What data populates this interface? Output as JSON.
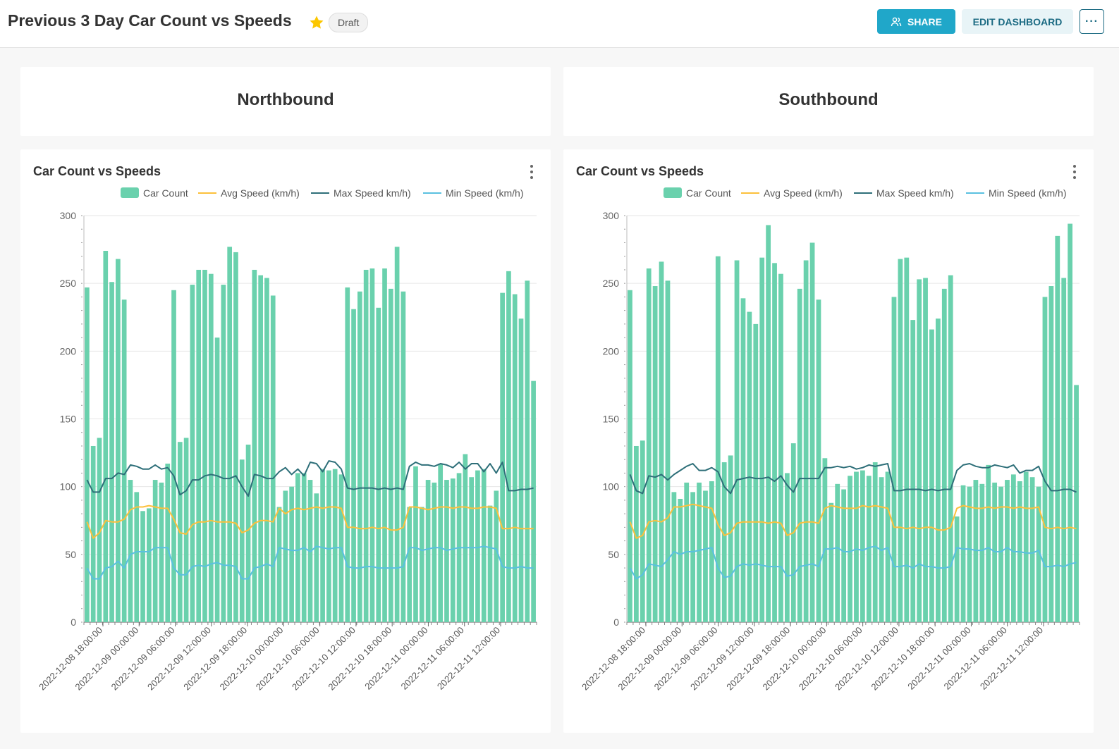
{
  "header": {
    "title": "Previous 3 Day Car Count vs Speeds",
    "badge": "Draft",
    "share_label": "SHARE",
    "edit_label": "EDIT DASHBOARD",
    "more_label": "···",
    "star_color": "#fcc700",
    "accent": "#20a7c9"
  },
  "headlines": {
    "north": "Northbound",
    "south": "Southbound"
  },
  "legend": [
    "Car Count",
    "Avg Speed (km/h)",
    "Max Speed km/h)",
    "Min Speed (km/h)"
  ],
  "colors": {
    "count": "#6ad1ad",
    "avg": "#fcc03c",
    "max": "#2e6f79",
    "min": "#5ac0e0"
  },
  "chart_data": [
    {
      "type": "bar",
      "title": "Car Count vs Speeds",
      "ylim": [
        0,
        300
      ],
      "y_ticks": [
        0,
        50,
        100,
        150,
        200,
        250,
        300
      ],
      "x_tick_labels": [
        "2022-12-08 18:00:00",
        "2022-12-09 00:00:00",
        "2022-12-09 06:00:00",
        "2022-12-09 12:00:00",
        "2022-12-09 18:00:00",
        "2022-12-10 00:00:00",
        "2022-12-10 06:00:00",
        "2022-12-10 12:00:00",
        "2022-12-10 18:00:00",
        "2022-12-11 00:00:00",
        "2022-12-11 06:00:00",
        "2022-12-11 12:00:00"
      ],
      "series": [
        {
          "name": "Car Count",
          "values": [
            247,
            130,
            136,
            274,
            251,
            268,
            238,
            105,
            96,
            82,
            84,
            105,
            103,
            117,
            245,
            133,
            136,
            249,
            260,
            260,
            257,
            210,
            249,
            277,
            273,
            120,
            131,
            260,
            256,
            254,
            241,
            85,
            97,
            100,
            110,
            110,
            105,
            95,
            113,
            112,
            113,
            109,
            247,
            231,
            244,
            260,
            261,
            232,
            261,
            246,
            277,
            244,
            85,
            115,
            85,
            105,
            103,
            117,
            105,
            106,
            110,
            124,
            107,
            112,
            113,
            86,
            97,
            243,
            259,
            242,
            224,
            252,
            178
          ]
        },
        {
          "name": "Avg Speed (km/h)",
          "values": [
            74,
            62,
            66,
            75,
            74,
            74,
            76,
            83,
            85,
            85,
            86,
            85,
            84,
            84,
            76,
            66,
            65,
            72,
            74,
            74,
            75,
            74,
            74,
            74,
            73,
            66,
            68,
            73,
            75,
            75,
            74,
            84,
            80,
            83,
            84,
            83,
            84,
            85,
            84,
            85,
            85,
            84,
            70,
            70,
            69,
            69,
            70,
            69,
            70,
            68,
            68,
            70,
            85,
            85,
            84,
            83,
            84,
            85,
            85,
            84,
            85,
            85,
            84,
            84,
            85,
            85,
            84,
            69,
            69,
            70,
            69,
            69,
            69
          ]
        },
        {
          "name": "Max Speed km/h)",
          "values": [
            105,
            96,
            96,
            106,
            106,
            110,
            109,
            116,
            115,
            113,
            113,
            116,
            113,
            114,
            108,
            94,
            97,
            105,
            105,
            108,
            109,
            108,
            106,
            106,
            108,
            100,
            93,
            109,
            108,
            106,
            106,
            111,
            114,
            109,
            113,
            108,
            118,
            117,
            111,
            119,
            118,
            113,
            99,
            98,
            99,
            99,
            99,
            98,
            99,
            98,
            99,
            98,
            115,
            118,
            116,
            116,
            115,
            117,
            116,
            114,
            118,
            113,
            117,
            117,
            111,
            117,
            110,
            118,
            97,
            97,
            98,
            98,
            99
          ]
        },
        {
          "name": "Min Speed (km/h)",
          "values": [
            40,
            32,
            32,
            40,
            41,
            45,
            40,
            50,
            52,
            52,
            52,
            55,
            55,
            55,
            40,
            35,
            35,
            41,
            42,
            41,
            43,
            44,
            42,
            42,
            41,
            32,
            32,
            40,
            41,
            43,
            41,
            55,
            54,
            53,
            53,
            55,
            52,
            56,
            55,
            54,
            55,
            55,
            41,
            40,
            40,
            41,
            41,
            40,
            40,
            40,
            40,
            41,
            55,
            55,
            53,
            54,
            55,
            55,
            53,
            54,
            55,
            55,
            55,
            55,
            56,
            55,
            54,
            41,
            40,
            40,
            41,
            40,
            40
          ]
        }
      ]
    },
    {
      "type": "bar",
      "title": "Car Count vs Speeds",
      "ylim": [
        0,
        300
      ],
      "y_ticks": [
        0,
        50,
        100,
        150,
        200,
        250,
        300
      ],
      "x_tick_labels": [
        "2022-12-08 18:00:00",
        "2022-12-09 00:00:00",
        "2022-12-09 06:00:00",
        "2022-12-09 12:00:00",
        "2022-12-09 18:00:00",
        "2022-12-10 00:00:00",
        "2022-12-10 06:00:00",
        "2022-12-10 12:00:00",
        "2022-12-10 18:00:00",
        "2022-12-11 00:00:00",
        "2022-12-11 06:00:00",
        "2022-12-11 12:00:00"
      ],
      "series": [
        {
          "name": "Car Count",
          "values": [
            245,
            130,
            134,
            261,
            248,
            266,
            252,
            96,
            91,
            103,
            96,
            103,
            97,
            104,
            270,
            118,
            123,
            267,
            239,
            229,
            220,
            269,
            293,
            265,
            257,
            110,
            132,
            246,
            267,
            280,
            238,
            121,
            88,
            102,
            98,
            108,
            111,
            112,
            108,
            118,
            107,
            111,
            240,
            268,
            269,
            223,
            253,
            254,
            216,
            224,
            246,
            256,
            78,
            101,
            100,
            105,
            102,
            116,
            103,
            100,
            105,
            109,
            104,
            111,
            107,
            100,
            240,
            248,
            285,
            254,
            294,
            175
          ]
        },
        {
          "name": "Avg Speed (km/h)",
          "values": [
            74,
            62,
            64,
            74,
            75,
            74,
            77,
            85,
            85,
            86,
            87,
            86,
            85,
            84,
            72,
            64,
            66,
            73,
            74,
            74,
            74,
            74,
            73,
            74,
            73,
            64,
            66,
            73,
            74,
            74,
            73,
            84,
            86,
            85,
            84,
            84,
            84,
            86,
            85,
            86,
            85,
            84,
            70,
            70,
            69,
            70,
            69,
            70,
            70,
            68,
            68,
            70,
            84,
            86,
            85,
            84,
            84,
            85,
            84,
            85,
            85,
            84,
            85,
            84,
            84,
            85,
            70,
            69,
            70,
            69,
            70,
            69
          ]
        },
        {
          "name": "Max Speed km/h)",
          "values": [
            109,
            97,
            95,
            108,
            107,
            109,
            105,
            109,
            112,
            115,
            117,
            112,
            112,
            114,
            111,
            100,
            95,
            105,
            106,
            107,
            106,
            106,
            107,
            104,
            108,
            101,
            96,
            106,
            106,
            106,
            106,
            114,
            114,
            115,
            114,
            115,
            113,
            114,
            116,
            115,
            116,
            117,
            97,
            97,
            98,
            98,
            98,
            97,
            98,
            97,
            98,
            98,
            112,
            116,
            117,
            115,
            114,
            114,
            116,
            115,
            114,
            116,
            110,
            112,
            112,
            115,
            104,
            97,
            97,
            98,
            98,
            96
          ]
        },
        {
          "name": "Min Speed (km/h)",
          "values": [
            40,
            32,
            35,
            43,
            42,
            41,
            46,
            52,
            50,
            52,
            52,
            53,
            54,
            55,
            40,
            33,
            34,
            41,
            43,
            42,
            43,
            42,
            41,
            41,
            41,
            34,
            35,
            41,
            42,
            43,
            41,
            54,
            54,
            55,
            52,
            52,
            54,
            53,
            55,
            56,
            53,
            55,
            41,
            41,
            42,
            40,
            43,
            41,
            41,
            40,
            40,
            41,
            55,
            54,
            54,
            53,
            53,
            55,
            52,
            52,
            55,
            52,
            52,
            51,
            51,
            53,
            41,
            41,
            42,
            41,
            43,
            44
          ]
        }
      ]
    }
  ]
}
